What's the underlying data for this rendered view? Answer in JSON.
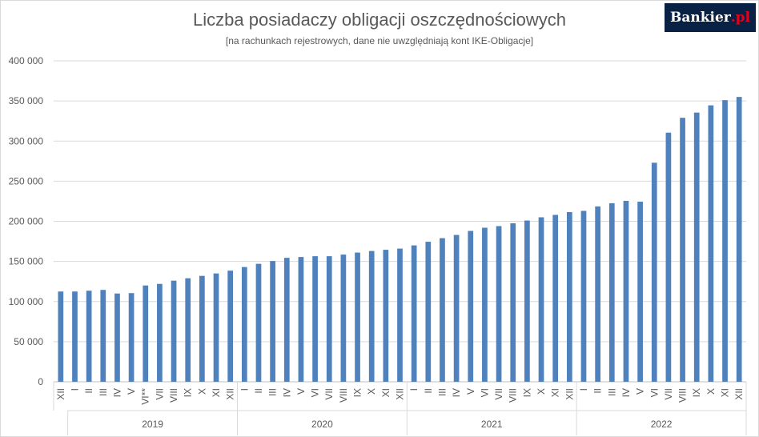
{
  "chart_data": {
    "type": "bar",
    "title": "Liczba posiadaczy obligacji oszczędnościowych",
    "subtitle": "[na rachunkach rejestrowych, dane nie uwzględniają kont IKE-Obligacje]",
    "xlabel": "",
    "ylabel": "",
    "ylim": [
      0,
      400000
    ],
    "yticks": [
      0,
      50000,
      100000,
      150000,
      200000,
      250000,
      300000,
      350000,
      400000
    ],
    "ytick_labels": [
      "0",
      "50 000",
      "100 000",
      "150 000",
      "200 000",
      "250 000",
      "300 000",
      "350 000",
      "400 000"
    ],
    "grid": true,
    "legend": "none",
    "bar_color": "#4f81bd",
    "categories": [
      "XII",
      "I",
      "II",
      "III",
      "IV",
      "V",
      "VI**",
      "VII",
      "VIII",
      "IX",
      "X",
      "XI",
      "XII",
      "I",
      "II",
      "III",
      "IV",
      "V",
      "VI",
      "VII",
      "VIII",
      "IX",
      "X",
      "XI",
      "XII",
      "I",
      "II",
      "III",
      "IV",
      "V",
      "VI",
      "VII",
      "VIII",
      "IX",
      "X",
      "XI",
      "XII",
      "I",
      "II",
      "III",
      "IV",
      "V",
      "VI",
      "VII",
      "VIII",
      "IX",
      "X",
      "XI",
      "XII"
    ],
    "groups": [
      {
        "label": "2019",
        "start": 1,
        "end": 12
      },
      {
        "label": "2020",
        "start": 13,
        "end": 24
      },
      {
        "label": "2021",
        "start": 25,
        "end": 36
      },
      {
        "label": "2022",
        "start": 37,
        "end": 48
      }
    ],
    "values": [
      112500,
      112500,
      113500,
      114500,
      110000,
      110500,
      120000,
      122000,
      126000,
      129000,
      132000,
      135000,
      138500,
      143000,
      147000,
      150500,
      154500,
      155500,
      156500,
      156500,
      158500,
      161000,
      163000,
      164500,
      166000,
      170000,
      174500,
      179000,
      183000,
      188000,
      192000,
      194000,
      197500,
      201000,
      205000,
      208000,
      211500,
      213000,
      218500,
      222500,
      225500,
      224500,
      273000,
      310500,
      329000,
      335500,
      344500,
      351000,
      355000
    ]
  },
  "logo": {
    "text": "Bankier",
    "suffix": ".pl"
  }
}
